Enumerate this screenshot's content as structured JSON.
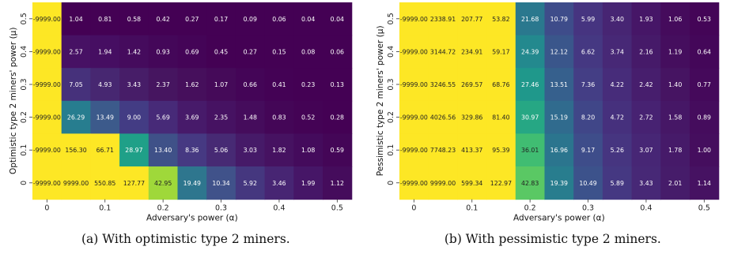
{
  "chart_data": [
    {
      "type": "heatmap",
      "caption": "(a) With optimistic type 2 miners.",
      "xlabel": "Adversary's power (α)",
      "ylabel": "Optimistic type 2 miners' power (μ)",
      "x_ticks": [
        "0",
        "0.1",
        "0.2",
        "0.3",
        "0.4",
        "0.5"
      ],
      "y_ticks": [
        "0.5",
        "0.4",
        "0.3",
        "0.2",
        "0.1",
        "0"
      ],
      "values": [
        [
          -9999.0,
          1.04,
          0.81,
          0.58,
          0.42,
          0.27,
          0.17,
          0.09,
          0.06,
          0.04,
          0.04
        ],
        [
          -9999.0,
          2.57,
          1.94,
          1.42,
          0.93,
          0.69,
          0.45,
          0.27,
          0.15,
          0.08,
          0.06
        ],
        [
          -9999.0,
          7.05,
          4.93,
          3.43,
          2.37,
          1.62,
          1.07,
          0.66,
          0.41,
          0.23,
          0.13
        ],
        [
          -9999.0,
          26.29,
          13.49,
          9.0,
          5.69,
          3.69,
          2.35,
          1.48,
          0.83,
          0.52,
          0.28
        ],
        [
          -9999.0,
          156.3,
          66.71,
          28.97,
          13.4,
          8.36,
          5.06,
          3.03,
          1.82,
          1.08,
          0.59
        ],
        [
          -9999.0,
          9999.0,
          550.85,
          127.77,
          42.95,
          19.49,
          10.34,
          5.92,
          3.46,
          1.99,
          1.12
        ]
      ],
      "colors": [
        [
          "#fde725",
          "#440154",
          "#440154",
          "#440154",
          "#440154",
          "#440154",
          "#440154",
          "#440154",
          "#440154",
          "#440154",
          "#440154"
        ],
        [
          "#fde725",
          "#471164",
          "#460e62",
          "#450b5d",
          "#440759",
          "#440457",
          "#440154",
          "#440154",
          "#440154",
          "#440154",
          "#440154"
        ],
        [
          "#fde725",
          "#46317b",
          "#472771",
          "#471d68",
          "#461560",
          "#460f5c",
          "#450a59",
          "#440557",
          "#440255",
          "#440154",
          "#440154"
        ],
        [
          "#fde725",
          "#277d8f",
          "#3c5a8b",
          "#433c84",
          "#472a78",
          "#471a6a",
          "#461262",
          "#450c5c",
          "#440657",
          "#440355",
          "#440154"
        ],
        [
          "#fde725",
          "#fde725",
          "#fde725",
          "#1fa088",
          "#3f5188",
          "#463982",
          "#472a74",
          "#461a68",
          "#461261",
          "#440b5c",
          "#440657"
        ],
        [
          "#fde725",
          "#fde725",
          "#fde725",
          "#fde725",
          "#9fd83a",
          "#2e768e",
          "#40528a",
          "#45377f",
          "#472573",
          "#461667",
          "#450c5c"
        ]
      ],
      "text_dark": [
        [
          true,
          false,
          false,
          false,
          false,
          false,
          false,
          false,
          false,
          false,
          false
        ],
        [
          true,
          false,
          false,
          false,
          false,
          false,
          false,
          false,
          false,
          false,
          false
        ],
        [
          true,
          false,
          false,
          false,
          false,
          false,
          false,
          false,
          false,
          false,
          false
        ],
        [
          true,
          false,
          false,
          false,
          false,
          false,
          false,
          false,
          false,
          false,
          false
        ],
        [
          true,
          true,
          true,
          false,
          false,
          false,
          false,
          false,
          false,
          false,
          false
        ],
        [
          true,
          true,
          true,
          true,
          true,
          false,
          false,
          false,
          false,
          false,
          false
        ]
      ]
    },
    {
      "type": "heatmap",
      "caption": "(b) With pessimistic type 2 miners.",
      "xlabel": "Adversary's power (α)",
      "ylabel": "Pessimistic type 2 miners' power (μ)",
      "x_ticks": [
        "0",
        "0.1",
        "0.2",
        "0.3",
        "0.4",
        "0.5"
      ],
      "y_ticks": [
        "0.5",
        "0.4",
        "0.3",
        "0.2",
        "0.1",
        "0"
      ],
      "values": [
        [
          -9999.0,
          2338.91,
          207.77,
          53.82,
          21.68,
          10.79,
          5.99,
          3.4,
          1.93,
          1.06,
          0.53
        ],
        [
          -9999.0,
          3144.72,
          234.91,
          59.17,
          24.39,
          12.12,
          6.62,
          3.74,
          2.16,
          1.19,
          0.64
        ],
        [
          -9999.0,
          3246.55,
          269.57,
          68.76,
          27.46,
          13.51,
          7.36,
          4.22,
          2.42,
          1.4,
          0.77
        ],
        [
          -9999.0,
          4026.56,
          329.86,
          81.4,
          30.97,
          15.19,
          8.2,
          4.72,
          2.72,
          1.58,
          0.89
        ],
        [
          -9999.0,
          7748.23,
          413.37,
          95.39,
          36.01,
          16.96,
          9.17,
          5.26,
          3.07,
          1.78,
          1.0
        ],
        [
          -9999.0,
          9999.0,
          599.34,
          122.97,
          42.83,
          19.39,
          10.49,
          5.89,
          3.43,
          2.01,
          1.14
        ]
      ],
      "colors": [
        [
          "#fde725",
          "#fde725",
          "#fde725",
          "#fde725",
          "#2a788e",
          "#3e4c8a",
          "#463480",
          "#472573",
          "#461667",
          "#450b5c",
          "#440557"
        ],
        [
          "#fde725",
          "#fde725",
          "#fde725",
          "#fde725",
          "#23898e",
          "#3a568b",
          "#453882",
          "#472876",
          "#461a69",
          "#450e5e",
          "#440759"
        ],
        [
          "#fde725",
          "#fde725",
          "#fde725",
          "#fde725",
          "#1f988b",
          "#36608d",
          "#443e85",
          "#472c7a",
          "#471e6d",
          "#461462",
          "#45095b"
        ],
        [
          "#fde725",
          "#fde725",
          "#fde725",
          "#fde725",
          "#26a784",
          "#306b8e",
          "#404688",
          "#46307d",
          "#472272",
          "#461766",
          "#450c5d"
        ],
        [
          "#fde725",
          "#fde725",
          "#fde725",
          "#fde725",
          "#40bd72",
          "#2b758e",
          "#3e4d8a",
          "#463580",
          "#472675",
          "#461a69",
          "#450e5e"
        ],
        [
          "#fde725",
          "#fde725",
          "#fde725",
          "#fde725",
          "#5ac864",
          "#287d8e",
          "#3c528b",
          "#453882",
          "#472876",
          "#461c6a",
          "#461262"
        ]
      ],
      "text_dark": [
        [
          true,
          true,
          true,
          true,
          false,
          false,
          false,
          false,
          false,
          false,
          false
        ],
        [
          true,
          true,
          true,
          true,
          false,
          false,
          false,
          false,
          false,
          false,
          false
        ],
        [
          true,
          true,
          true,
          true,
          false,
          false,
          false,
          false,
          false,
          false,
          false
        ],
        [
          true,
          true,
          true,
          true,
          false,
          false,
          false,
          false,
          false,
          false,
          false
        ],
        [
          true,
          true,
          true,
          true,
          true,
          false,
          false,
          false,
          false,
          false,
          false
        ],
        [
          true,
          true,
          true,
          true,
          true,
          false,
          false,
          false,
          false,
          false,
          false
        ]
      ]
    }
  ]
}
